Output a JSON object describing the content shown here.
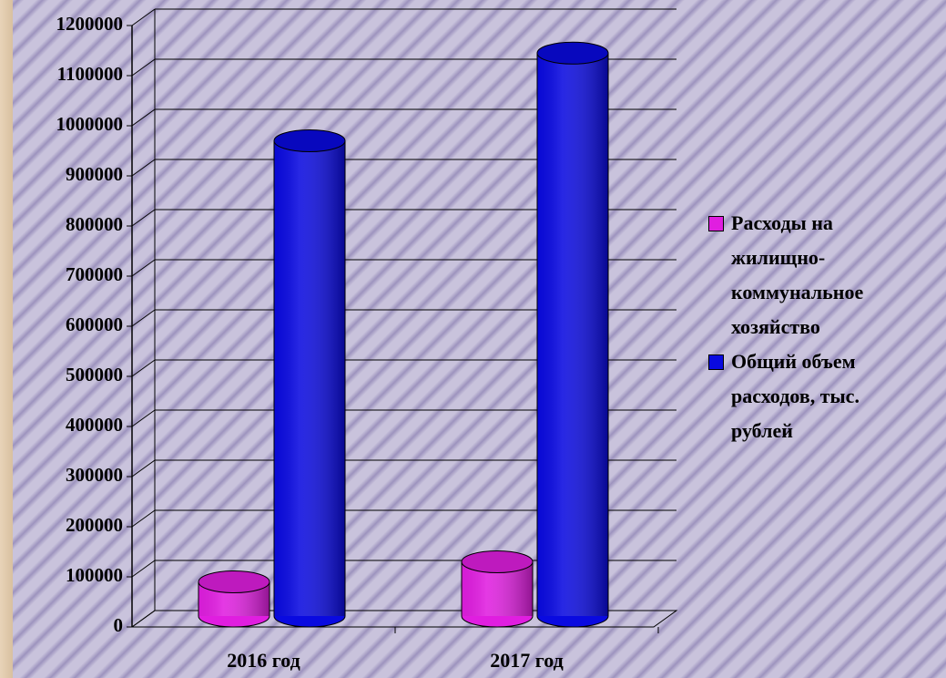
{
  "chart_data": {
    "type": "bar3d",
    "categories": [
      "2016 год",
      "2017 год"
    ],
    "series": [
      {
        "name": "Расходы на жилищно-коммунальное хозяйство",
        "color": "#e01ee0",
        "values": [
          90000,
          130000
        ]
      },
      {
        "name": "Общий объем расходов, тыс. рублей",
        "color": "#0a0ae0",
        "values": [
          970000,
          1145000
        ]
      }
    ],
    "ylim": [
      0,
      1200000
    ],
    "yticks": [
      0,
      100000,
      200000,
      300000,
      400000,
      500000,
      600000,
      700000,
      800000,
      900000,
      1000000,
      1100000,
      1200000
    ],
    "grid": true,
    "legend": "right"
  }
}
